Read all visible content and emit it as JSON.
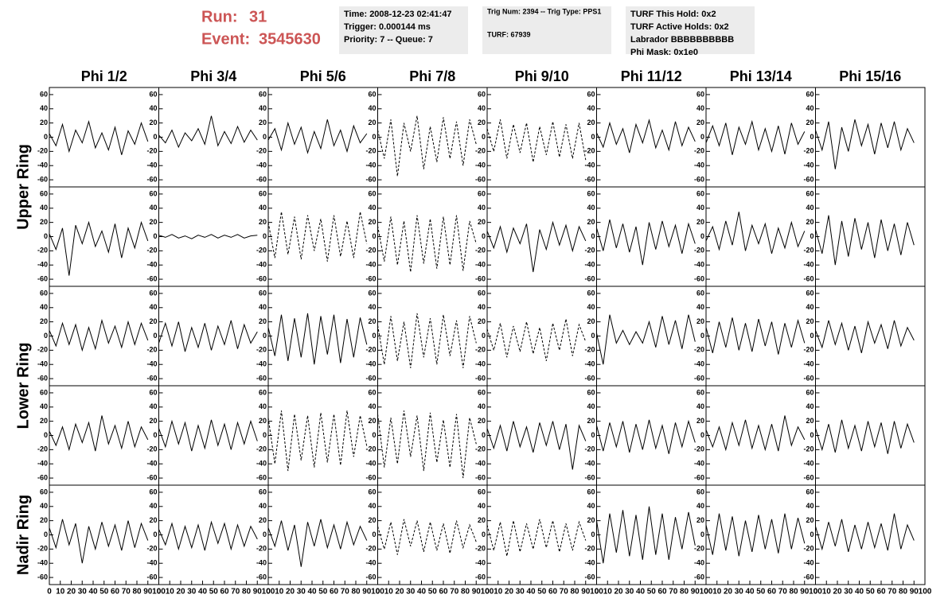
{
  "header": {
    "run_label": "Run:",
    "run": "31",
    "event_label": "Event:",
    "event": "3545630"
  },
  "info": [
    [
      "Time: 2008-12-23 02:41:47",
      "Trigger: 0.000144 ms",
      "Priority: 7 -- Queue: 7"
    ],
    [
      "Trig Num: 2394 -- Trig Type: PPS1",
      "TURF: 67939"
    ],
    [
      "TURF This Hold: 0x2",
      "TURF Active Holds: 0x2",
      "Labrador BBBBBBBBBB",
      "Phi Mask: 0x1e0"
    ]
  ],
  "columns": [
    "Phi 1/2",
    "Phi 3/4",
    "Phi 5/6",
    "Phi 7/8",
    "Phi 9/10",
    "Phi 11/12",
    "Phi 13/14",
    "Phi 15/16"
  ],
  "ring_labels": [
    "Upper Ring",
    "Lower Ring",
    "Nadir Ring"
  ],
  "chart_data": {
    "type": "line",
    "xlim": [
      0,
      100
    ],
    "ylim": [
      -70,
      70
    ],
    "xticks": [
      0,
      10,
      20,
      30,
      40,
      50,
      60,
      70,
      80,
      90,
      100
    ],
    "yticks": [
      -60,
      -40,
      -20,
      0,
      20,
      40,
      60
    ],
    "x": [
      0,
      6,
      12,
      18,
      24,
      30,
      36,
      42,
      48,
      54,
      60,
      66,
      72,
      78,
      84,
      90
    ],
    "series": [
      {
        "color": "#000000",
        "dashed": false,
        "values": [
          5,
          -12,
          18,
          -20,
          10,
          -8,
          22,
          -15,
          6,
          -18,
          14,
          -25,
          9,
          -10,
          20,
          -6
        ]
      },
      {
        "color": "#000000",
        "dashed": false,
        "values": [
          3,
          -8,
          10,
          -14,
          6,
          -5,
          12,
          -10,
          30,
          -12,
          8,
          -9,
          15,
          -7,
          10,
          -4
        ]
      },
      {
        "color": "#000000",
        "dashed": false,
        "values": [
          -4,
          12,
          -18,
          20,
          -10,
          14,
          -22,
          8,
          -16,
          25,
          -12,
          10,
          -20,
          16,
          -8,
          5
        ]
      },
      {
        "color": "#000000",
        "dashed": true,
        "values": [
          10,
          -30,
          25,
          -55,
          20,
          -20,
          30,
          -45,
          15,
          -35,
          28,
          -30,
          22,
          -40,
          25,
          -10
        ]
      },
      {
        "color": "#000000",
        "dashed": true,
        "values": [
          12,
          -20,
          25,
          -30,
          18,
          -22,
          20,
          -35,
          15,
          -25,
          22,
          -28,
          18,
          -30,
          20,
          -32
        ]
      },
      {
        "color": "#000000",
        "dashed": false,
        "values": [
          6,
          -14,
          20,
          -10,
          12,
          -22,
          18,
          -8,
          24,
          -15,
          10,
          -18,
          22,
          -12,
          14,
          -6
        ]
      },
      {
        "color": "#000000",
        "dashed": false,
        "values": [
          -8,
          16,
          -12,
          20,
          -25,
          14,
          -10,
          22,
          -18,
          12,
          -20,
          16,
          -24,
          20,
          -10,
          8
        ]
      },
      {
        "color": "#000000",
        "dashed": false,
        "values": [
          10,
          -18,
          22,
          -45,
          14,
          -20,
          25,
          -12,
          18,
          -24,
          20,
          -15,
          22,
          -18,
          12,
          -8
        ]
      },
      {
        "color": "#000000",
        "dashed": false,
        "values": [
          4,
          -18,
          12,
          -55,
          16,
          -10,
          20,
          -14,
          8,
          -22,
          18,
          -30,
          12,
          -16,
          20,
          -6
        ]
      },
      {
        "color": "#000000",
        "dashed": false,
        "values": [
          2,
          -1,
          3,
          -2,
          1,
          -3,
          2,
          -1,
          3,
          -2,
          2,
          -1,
          3,
          -2,
          1,
          2
        ]
      },
      {
        "color": "#000000",
        "dashed": true,
        "values": [
          20,
          -30,
          35,
          -25,
          28,
          -32,
          30,
          -20,
          25,
          -35,
          30,
          -28,
          22,
          -30,
          35,
          -10
        ]
      },
      {
        "color": "#000000",
        "dashed": true,
        "values": [
          15,
          -35,
          28,
          -40,
          22,
          -50,
          30,
          -38,
          25,
          -45,
          28,
          -40,
          30,
          -48,
          22,
          -10
        ]
      },
      {
        "color": "#000000",
        "dashed": false,
        "values": [
          8,
          -16,
          14,
          -22,
          12,
          -10,
          18,
          -50,
          10,
          -18,
          20,
          -12,
          16,
          -20,
          14,
          -6
        ]
      },
      {
        "color": "#000000",
        "dashed": false,
        "values": [
          12,
          -20,
          24,
          -16,
          18,
          -22,
          14,
          -40,
          20,
          -18,
          22,
          -14,
          16,
          -24,
          18,
          -10
        ]
      },
      {
        "color": "#000000",
        "dashed": false,
        "values": [
          -6,
          14,
          -18,
          22,
          -12,
          35,
          -20,
          16,
          -10,
          18,
          -24,
          12,
          -16,
          20,
          -14,
          8
        ]
      },
      {
        "color": "#000000",
        "dashed": false,
        "values": [
          10,
          -24,
          30,
          -40,
          22,
          -28,
          26,
          -18,
          20,
          -30,
          24,
          -20,
          18,
          -26,
          20,
          -12
        ]
      },
      {
        "color": "#000000",
        "dashed": false,
        "values": [
          8,
          -14,
          18,
          -12,
          16,
          -20,
          12,
          -18,
          22,
          -10,
          14,
          -16,
          20,
          -12,
          18,
          -6
        ]
      },
      {
        "color": "#000000",
        "dashed": false,
        "values": [
          -10,
          18,
          -14,
          20,
          -22,
          12,
          -16,
          18,
          -20,
          14,
          -12,
          22,
          -18,
          16,
          -10,
          6
        ]
      },
      {
        "color": "#000000",
        "dashed": false,
        "values": [
          12,
          -28,
          30,
          -35,
          25,
          -30,
          32,
          -40,
          28,
          -26,
          30,
          -38,
          24,
          -30,
          26,
          -12
        ]
      },
      {
        "color": "#000000",
        "dashed": true,
        "values": [
          15,
          -40,
          28,
          -35,
          20,
          -45,
          32,
          -30,
          25,
          -40,
          30,
          -28,
          22,
          -45,
          28,
          -10
        ]
      },
      {
        "color": "#000000",
        "dashed": true,
        "values": [
          10,
          -20,
          18,
          -30,
          14,
          -22,
          20,
          -25,
          12,
          -35,
          18,
          -20,
          24,
          -28,
          16,
          -8
        ]
      },
      {
        "color": "#000000",
        "dashed": false,
        "values": [
          4,
          -40,
          30,
          -10,
          8,
          -12,
          6,
          -10,
          20,
          -16,
          28,
          -12,
          22,
          -18,
          30,
          -8
        ]
      },
      {
        "color": "#000000",
        "dashed": false,
        "values": [
          12,
          -24,
          20,
          -16,
          26,
          -20,
          18,
          -22,
          24,
          -14,
          20,
          -26,
          18,
          -16,
          22,
          -10
        ]
      },
      {
        "color": "#000000",
        "dashed": false,
        "values": [
          8,
          -16,
          22,
          -12,
          18,
          -20,
          14,
          -24,
          20,
          -10,
          16,
          -18,
          22,
          -14,
          12,
          -6
        ]
      },
      {
        "color": "#000000",
        "dashed": false,
        "values": [
          6,
          -14,
          12,
          -20,
          16,
          -10,
          18,
          -22,
          28,
          -12,
          14,
          -18,
          20,
          -16,
          12,
          -6
        ]
      },
      {
        "color": "#000000",
        "dashed": false,
        "values": [
          10,
          -16,
          20,
          -12,
          18,
          -22,
          14,
          -18,
          22,
          -14,
          16,
          -20,
          18,
          -12,
          20,
          -8
        ]
      },
      {
        "color": "#000000",
        "dashed": true,
        "values": [
          25,
          -40,
          35,
          -50,
          30,
          -35,
          28,
          -45,
          32,
          -38,
          30,
          -42,
          35,
          -30,
          28,
          -15
        ]
      },
      {
        "color": "#000000",
        "dashed": true,
        "values": [
          30,
          -45,
          25,
          -40,
          35,
          -30,
          28,
          -50,
          32,
          -38,
          22,
          -45,
          30,
          -60,
          25,
          -12
        ]
      },
      {
        "color": "#000000",
        "dashed": false,
        "values": [
          10,
          -18,
          14,
          -22,
          20,
          -16,
          12,
          -24,
          18,
          -14,
          20,
          -20,
          16,
          -48,
          14,
          -8
        ]
      },
      {
        "color": "#000000",
        "dashed": false,
        "values": [
          14,
          -22,
          18,
          -16,
          20,
          -24,
          16,
          -20,
          22,
          -18,
          14,
          -26,
          18,
          -16,
          20,
          -10
        ]
      },
      {
        "color": "#000000",
        "dashed": false,
        "values": [
          8,
          -16,
          12,
          -20,
          18,
          -14,
          22,
          -18,
          14,
          -20,
          16,
          -22,
          28,
          -14,
          12,
          -6
        ]
      },
      {
        "color": "#000000",
        "dashed": false,
        "values": [
          10,
          -20,
          16,
          -24,
          22,
          -18,
          14,
          -22,
          20,
          -16,
          18,
          -26,
          20,
          -18,
          16,
          -10
        ]
      },
      {
        "color": "#000000",
        "dashed": false,
        "values": [
          10,
          -18,
          22,
          -14,
          16,
          -40,
          12,
          -20,
          18,
          -16,
          14,
          -22,
          20,
          -18,
          16,
          -8
        ]
      },
      {
        "color": "#000000",
        "dashed": false,
        "values": [
          8,
          -14,
          16,
          -20,
          12,
          -18,
          14,
          -22,
          18,
          -12,
          16,
          -20,
          14,
          -16,
          12,
          -6
        ]
      },
      {
        "color": "#000000",
        "dashed": false,
        "values": [
          10,
          -16,
          20,
          -22,
          14,
          -45,
          18,
          -16,
          22,
          -18,
          14,
          -20,
          18,
          -14,
          12,
          -8
        ]
      },
      {
        "color": "#000000",
        "dashed": true,
        "values": [
          12,
          -20,
          18,
          -28,
          22,
          -16,
          20,
          -24,
          18,
          -22,
          16,
          -26,
          20,
          -18,
          14,
          -10
        ]
      },
      {
        "color": "#000000",
        "dashed": true,
        "values": [
          14,
          -22,
          18,
          -30,
          20,
          -24,
          16,
          -20,
          22,
          -18,
          20,
          -24,
          16,
          -22,
          18,
          -8
        ]
      },
      {
        "color": "#000000",
        "dashed": false,
        "values": [
          20,
          -40,
          30,
          -25,
          35,
          -30,
          28,
          -35,
          40,
          -28,
          30,
          -35,
          25,
          -20,
          32,
          -15
        ]
      },
      {
        "color": "#000000",
        "dashed": false,
        "values": [
          14,
          -28,
          30,
          -22,
          26,
          -30,
          20,
          -24,
          28,
          -20,
          22,
          -26,
          30,
          -20,
          24,
          -12
        ]
      },
      {
        "color": "#000000",
        "dashed": false,
        "values": [
          12,
          -20,
          18,
          -16,
          22,
          -24,
          14,
          -20,
          18,
          -18,
          16,
          -22,
          30,
          -20,
          14,
          -8
        ]
      }
    ]
  }
}
